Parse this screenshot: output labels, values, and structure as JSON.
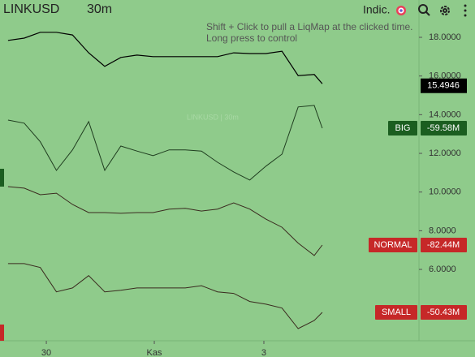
{
  "chart_data": {
    "type": "line",
    "symbol": "LINKUSD",
    "interval": "30m",
    "indicators_button": "Indic.",
    "hint": [
      "Shift + Click to pull a LiqMap at the clicked time.",
      "Long press to control"
    ],
    "watermark": "LINKUSD | 30m",
    "last_price": 15.4946,
    "x": [
      1,
      3,
      5,
      7,
      9,
      11,
      13,
      15,
      17,
      19,
      21,
      23,
      25,
      27,
      29,
      31,
      33,
      35,
      37,
      39,
      40
    ],
    "xlim": [
      0,
      52
    ],
    "xticks": [
      {
        "value": 5.75,
        "label": "30"
      },
      {
        "value": 19.15,
        "label": "Kas"
      },
      {
        "value": 32.75,
        "label": "3"
      }
    ],
    "ylim": [
      2.31,
      19.93
    ],
    "yticks": [
      {
        "value": 18,
        "label": "18.0000"
      },
      {
        "value": 16,
        "label": "16.0000"
      },
      {
        "value": 14,
        "label": "14.0000"
      },
      {
        "value": 12,
        "label": "12.0000"
      },
      {
        "value": 10,
        "label": "10.0000"
      },
      {
        "value": 8,
        "label": "8.0000"
      },
      {
        "value": 6,
        "label": "6.0000"
      }
    ],
    "series": [
      {
        "color": "#000000",
        "values": [
          17.84,
          17.96,
          18.26,
          18.26,
          18.12,
          17.2,
          16.5,
          16.96,
          17.08,
          17.0,
          17.0,
          17.0,
          17.0,
          17.0,
          17.2,
          17.16,
          17.16,
          17.28,
          16.02,
          16.08,
          15.6
        ]
      },
      {
        "name": "BIG",
        "badge": "-59.58M",
        "color": "#1f3d1f",
        "badge_color": "#1b5e20",
        "values": [
          13.72,
          13.56,
          12.6,
          11.12,
          12.18,
          13.64,
          11.12,
          12.38,
          12.12,
          11.88,
          12.18,
          12.18,
          12.12,
          11.54,
          11.04,
          10.62,
          11.34,
          11.96,
          14.4,
          14.48,
          13.3
        ]
      },
      {
        "name": "NORMAL",
        "badge": "-82.44M",
        "color": "#3a2a1f",
        "badge_color": "#c62828",
        "values": [
          10.28,
          10.2,
          9.86,
          9.94,
          9.36,
          8.94,
          8.94,
          8.9,
          8.94,
          8.94,
          9.12,
          9.16,
          9.02,
          9.12,
          9.44,
          9.12,
          8.6,
          8.18,
          7.36,
          6.72,
          7.26
        ]
      },
      {
        "name": "SMALL",
        "badge": "-50.43M",
        "color": "#3a2a1f",
        "badge_color": "#c62828",
        "values": [
          6.3,
          6.3,
          6.1,
          4.84,
          5.04,
          5.68,
          4.84,
          4.92,
          5.04,
          5.04,
          5.04,
          5.04,
          5.16,
          4.84,
          4.76,
          4.34,
          4.2,
          4.0,
          2.94,
          3.36,
          3.78
        ]
      }
    ]
  }
}
